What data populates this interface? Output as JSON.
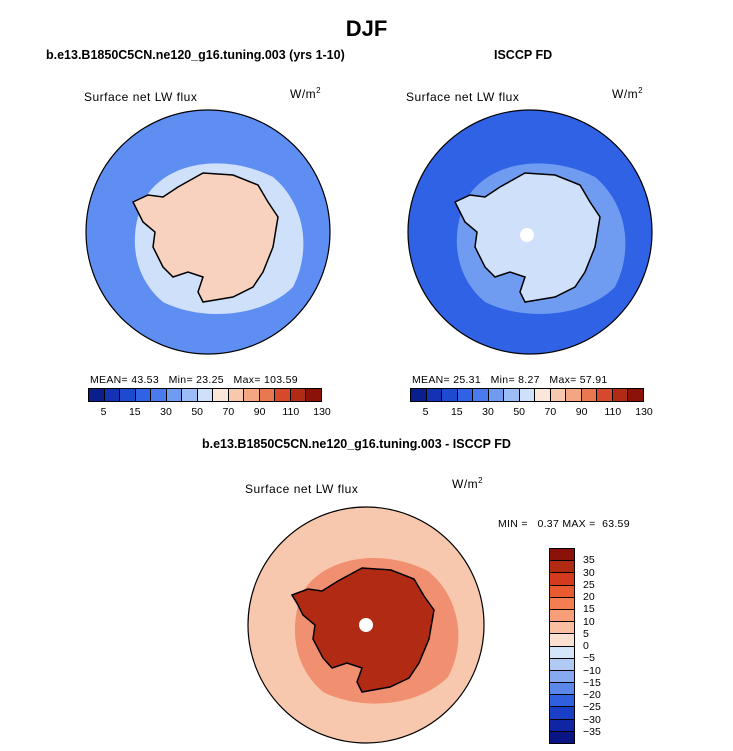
{
  "figure": {
    "season": "DJF"
  },
  "panels": [
    {
      "id": "model",
      "title": "b.e13.B1850C5CN.ne120_g16.tuning.003 (yrs 1-10)",
      "variable": "Surface net LW flux",
      "unit_base": "W/m",
      "unit_exp": "2",
      "stats": {
        "mean_label": "MEAN=",
        "mean": "43.53",
        "min_label": "Min=",
        "min": "23.25",
        "max_label": "Max=",
        "max": "103.59"
      },
      "ocean_color": "#5f8ef2",
      "ice_color": "#f8d2be",
      "inner_ring_color": "#cfe0fb"
    },
    {
      "id": "obs",
      "title": "ISCCP FD",
      "variable": "Surface net LW flux",
      "unit_base": "W/m",
      "unit_exp": "2",
      "stats": {
        "mean_label": "MEAN=",
        "mean": "25.31",
        "min_label": "Min=",
        "min": "8.27",
        "max_label": "Max=",
        "max": "57.91"
      },
      "ocean_color": "#2f62e4",
      "ice_color": "#cfe0fb",
      "inner_ring_color": "#6f9cf0"
    },
    {
      "id": "diff",
      "title": "b.e13.B1850C5CN.ne120_g16.tuning.003 - ISCCP FD",
      "variable": "Surface net LW flux",
      "unit_base": "W/m",
      "unit_exp": "2",
      "stats": {
        "min_label": "MIN =",
        "min": "0.37",
        "max_label": "MAX =",
        "max": "63.59"
      },
      "ocean_color": "#f8c8ae",
      "ice_color": "#b02a14",
      "inner_ring_color": "#f09070"
    }
  ],
  "colorbar_abs": {
    "ticks": [
      "5",
      "15",
      "30",
      "50",
      "70",
      "90",
      "110",
      "130"
    ],
    "colors": [
      "#0b1f8c",
      "#1432b4",
      "#1e4ad2",
      "#2f62e4",
      "#4a7bee",
      "#6f9cf0",
      "#9bbcf5",
      "#cfe0fb",
      "#fbe6da",
      "#f8c8ae",
      "#f4a582",
      "#e9774f",
      "#d6492c",
      "#b02a14",
      "#8a1208"
    ]
  },
  "colorbar_diff": {
    "ticks": [
      "35",
      "30",
      "25",
      "20",
      "15",
      "10",
      "5",
      "0",
      "−5",
      "−10",
      "−15",
      "−20",
      "−25",
      "−30",
      "−35"
    ],
    "colors": [
      "#8a1208",
      "#b02a14",
      "#d43b1e",
      "#ea5a30",
      "#f47d52",
      "#f89e78",
      "#f9bfa0",
      "#fce1d0",
      "#d5e5fa",
      "#b0caf3",
      "#86a9ef",
      "#5b86ea",
      "#3060df",
      "#1a3fc6",
      "#0e25a4",
      "#081582"
    ]
  }
}
